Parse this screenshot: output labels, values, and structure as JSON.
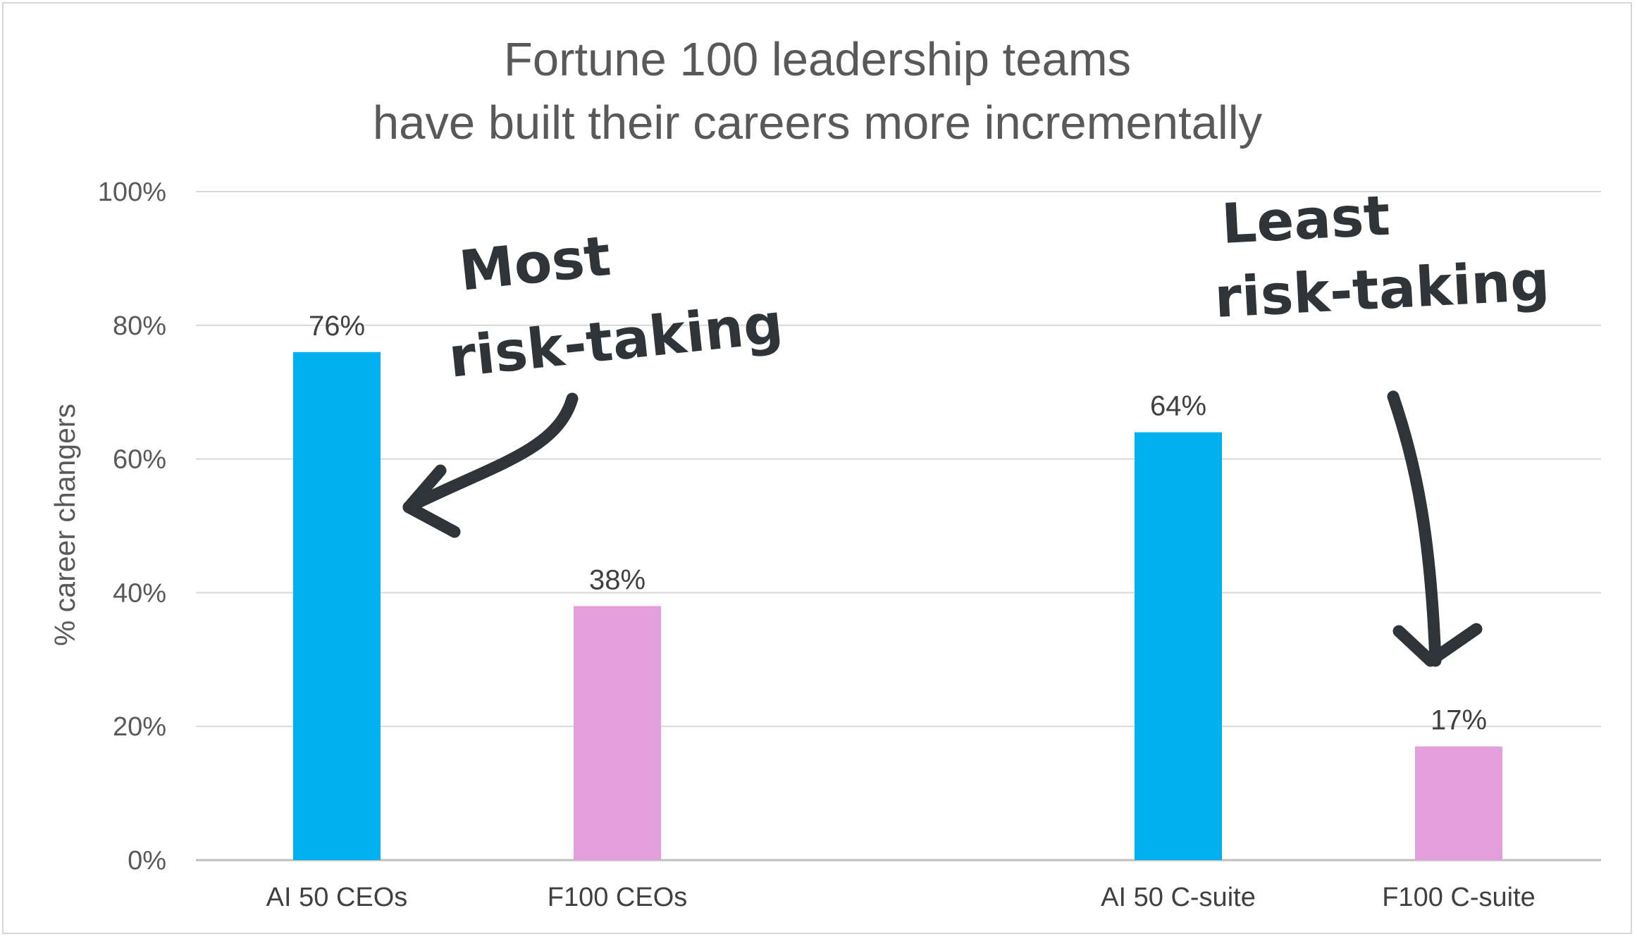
{
  "chart_data": {
    "type": "bar",
    "title_lines": [
      "Fortune 100 leadership teams",
      "have built their careers more incrementally"
    ],
    "ylabel": "% career changers",
    "xlabel": "",
    "ylim": [
      0,
      100
    ],
    "y_ticks": [
      "0%",
      "20%",
      "40%",
      "60%",
      "80%",
      "100%"
    ],
    "grid": true,
    "categories": [
      "AI 50 CEOs",
      "F100 CEOs",
      "AI 50 C-suite",
      "F100 C-suite"
    ],
    "values": [
      76,
      38,
      64,
      17
    ],
    "data_labels": [
      "76%",
      "38%",
      "64%",
      "17%"
    ],
    "bar_colors": [
      "#00b0f0",
      "#e39fdc",
      "#00b0f0",
      "#e39fdc"
    ],
    "annotations": [
      {
        "lines": [
          "Most",
          "risk-taking"
        ],
        "points_to": "AI 50 CEOs"
      },
      {
        "lines": [
          "Least",
          "risk-taking"
        ],
        "points_to": "F100 C-suite"
      }
    ]
  }
}
